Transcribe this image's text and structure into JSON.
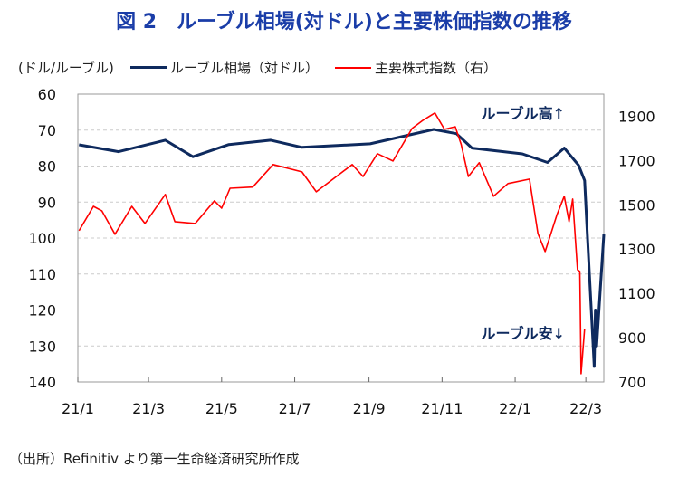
{
  "title": "図 2　ルーブル相場(対ドル)と主要株価指数の推移",
  "source": "（出所）Refinitiv より第一生命経済研究所作成",
  "chart_data": {
    "type": "line",
    "left_axis_label": "(ドル/ルーブル)",
    "legend": [
      "ルーブル相場（対ドル）",
      "主要株式指数（右）"
    ],
    "legend_placement": "top",
    "annotations": [
      "ルーブル高↑",
      "ルーブル安↓"
    ],
    "y_left": {
      "range": [
        60,
        140
      ],
      "inverted": true,
      "ticks": [
        60,
        70,
        80,
        90,
        100,
        110,
        120,
        130,
        140
      ]
    },
    "y_right": {
      "range": [
        700,
        2000
      ],
      "ticks": [
        700,
        900,
        1100,
        1300,
        1500,
        1700,
        1900
      ]
    },
    "x": {
      "range": [
        "2021-01-01",
        "2022-03-16"
      ],
      "ticks": [
        "2021-01-01",
        "2021-03-01",
        "2021-05-01",
        "2021-07-01",
        "2021-09-01",
        "2021-11-01",
        "2022-01-01",
        "2022-03-01"
      ],
      "tick_labels": [
        "21/1",
        "21/3",
        "21/5",
        "21/7",
        "21/9",
        "21/11",
        "22/1",
        "22/3"
      ]
    },
    "grid": "horizontal dashed",
    "colors": {
      "ruble": "#0e2a5e",
      "index": "#ff0000"
    },
    "series": [
      {
        "name": "ルーブル相場（対ドル）",
        "axis": "left",
        "points": [
          [
            "2021-01-02",
            74.1
          ],
          [
            "2021-02-04",
            76
          ],
          [
            "2021-03-15",
            72.8
          ],
          [
            "2021-04-07",
            77.4
          ],
          [
            "2021-05-07",
            74
          ],
          [
            "2021-06-11",
            72.8
          ],
          [
            "2021-07-07",
            74.8
          ],
          [
            "2021-09-02",
            73.8
          ],
          [
            "2021-10-25",
            69.8
          ],
          [
            "2021-11-13",
            71
          ],
          [
            "2021-11-26",
            75
          ],
          [
            "2022-01-07",
            76.6
          ],
          [
            "2022-01-28",
            79
          ],
          [
            "2022-02-11",
            75
          ],
          [
            "2022-02-23",
            79.8
          ],
          [
            "2022-02-28",
            84
          ],
          [
            "2022-03-02",
            97.5
          ],
          [
            "2022-03-08",
            135.7
          ],
          [
            "2022-03-09",
            120
          ],
          [
            "2022-03-10",
            130
          ],
          [
            "2022-03-16",
            99
          ]
        ]
      },
      {
        "name": "主要株式指数（右）",
        "axis": "right",
        "points": [
          [
            "2021-01-02",
            1383
          ],
          [
            "2021-01-14",
            1493
          ],
          [
            "2021-01-21",
            1473
          ],
          [
            "2021-02-01",
            1367
          ],
          [
            "2021-02-15",
            1493
          ],
          [
            "2021-02-26",
            1416
          ],
          [
            "2021-03-15",
            1547
          ],
          [
            "2021-03-23",
            1424
          ],
          [
            "2021-04-09",
            1416
          ],
          [
            "2021-04-25",
            1518
          ],
          [
            "2021-05-01",
            1485
          ],
          [
            "2021-05-08",
            1575
          ],
          [
            "2021-05-27",
            1580
          ],
          [
            "2021-06-13",
            1682
          ],
          [
            "2021-07-07",
            1649
          ],
          [
            "2021-07-19",
            1559
          ],
          [
            "2021-08-18",
            1682
          ],
          [
            "2021-08-27",
            1628
          ],
          [
            "2021-09-08",
            1731
          ],
          [
            "2021-09-21",
            1698
          ],
          [
            "2021-10-07",
            1845
          ],
          [
            "2021-10-16",
            1882
          ],
          [
            "2021-10-26",
            1915
          ],
          [
            "2021-11-03",
            1841
          ],
          [
            "2021-11-12",
            1853
          ],
          [
            "2021-11-17",
            1772
          ],
          [
            "2021-11-23",
            1628
          ],
          [
            "2021-12-02",
            1690
          ],
          [
            "2021-12-14",
            1539
          ],
          [
            "2021-12-26",
            1596
          ],
          [
            "2022-01-13",
            1616
          ],
          [
            "2022-01-20",
            1371
          ],
          [
            "2022-01-26",
            1289
          ],
          [
            "2022-02-05",
            1457
          ],
          [
            "2022-02-11",
            1539
          ],
          [
            "2022-02-15",
            1424
          ],
          [
            "2022-02-18",
            1526
          ],
          [
            "2022-02-22",
            1207
          ],
          [
            "2022-02-24",
            1199
          ],
          [
            "2022-02-25",
            737
          ],
          [
            "2022-02-28",
            941
          ]
        ]
      }
    ]
  }
}
